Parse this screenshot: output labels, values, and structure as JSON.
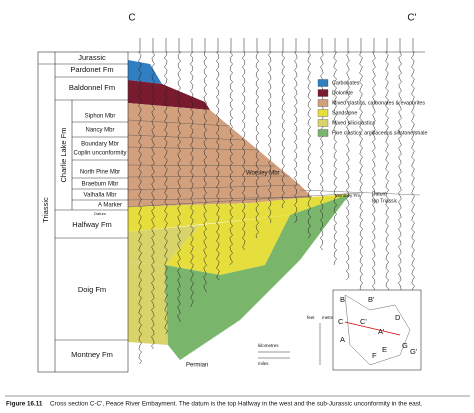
{
  "section": {
    "start": "C",
    "end": "C'"
  },
  "left_column": {
    "system": "Triassic",
    "group": "Charlie Lake Fm",
    "units": [
      "Jurassic",
      "Pardonet Fm",
      "Baldonnel Fm",
      "Siphon Mbr",
      "Nancy Mbr",
      "Boundary Mbr",
      "Coplin unconformity",
      "North Pine Mbr",
      "Braeburn Mbr",
      "Valhalla Mbr",
      "A Marker",
      "Datum",
      "Halfway Fm",
      "Doig Fm",
      "Montney Fm"
    ]
  },
  "section_labels": {
    "worsley": "Worsley Mbr",
    "montney_right": "Montney Fm",
    "datum_right": "Datum",
    "top_triassic": "top Triassic",
    "permian": "Permian"
  },
  "legend": [
    "Carbonates",
    "Dolomite",
    "Mixed clastics, carbonates & evaporites",
    "Sandstone",
    "Mixed siliciclastics",
    "Fine clastics, argillaceous siltstone/shale"
  ],
  "scale": {
    "feet": "feet",
    "metres": "metres",
    "kilometres": "kilometres",
    "miles": "miles"
  },
  "map_labels": [
    "B",
    "B'",
    "C",
    "C'",
    "A",
    "A'",
    "D",
    "E",
    "F",
    "G",
    "G'"
  ],
  "caption": {
    "number": "Figure 16.11",
    "text": "Cross section C-C', Peace River Embayment. The datum is the top Halfway in the west and the sub-Jurassic unconformity in the east."
  }
}
